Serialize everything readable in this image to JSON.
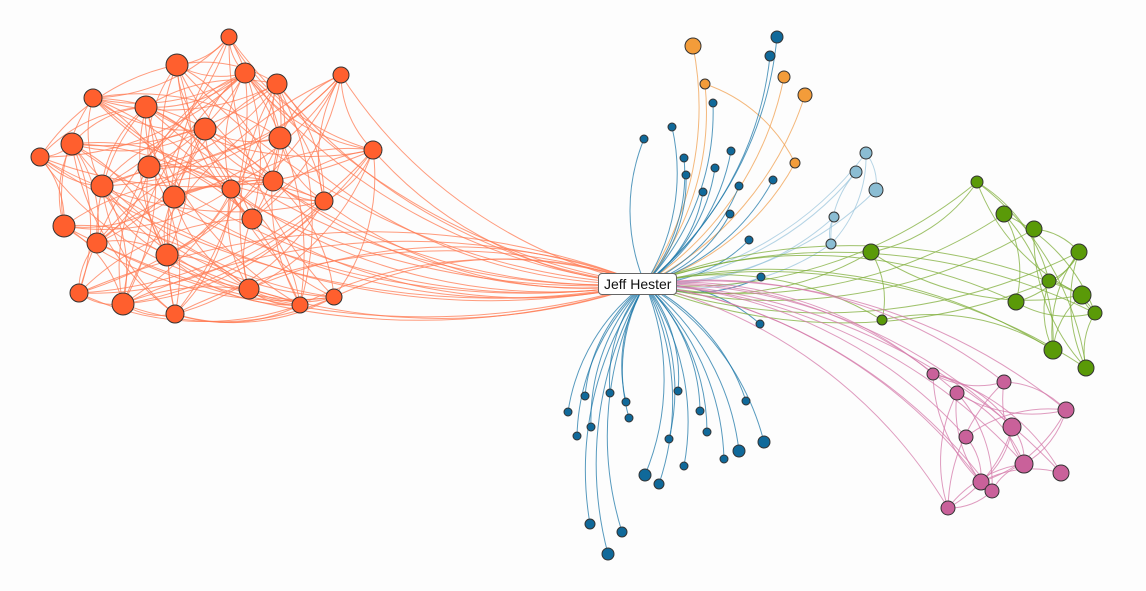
{
  "graph": {
    "center_label": "Jeff Hester",
    "groups": [
      {
        "id": "red-orange",
        "color": "#ff5f2e",
        "link_color": "#ff7a52"
      },
      {
        "id": "orange",
        "color": "#f39c3a",
        "link_color": "#f0a050"
      },
      {
        "id": "blue",
        "color": "#10699a",
        "link_color": "#1f78a8"
      },
      {
        "id": "light-blue",
        "color": "#8bbdd3",
        "link_color": "#9cc6dc"
      },
      {
        "id": "green",
        "color": "#5a9a08",
        "link_color": "#7fae3a"
      },
      {
        "id": "pink",
        "color": "#c9619a",
        "link_color": "#d47aaa"
      }
    ]
  }
}
